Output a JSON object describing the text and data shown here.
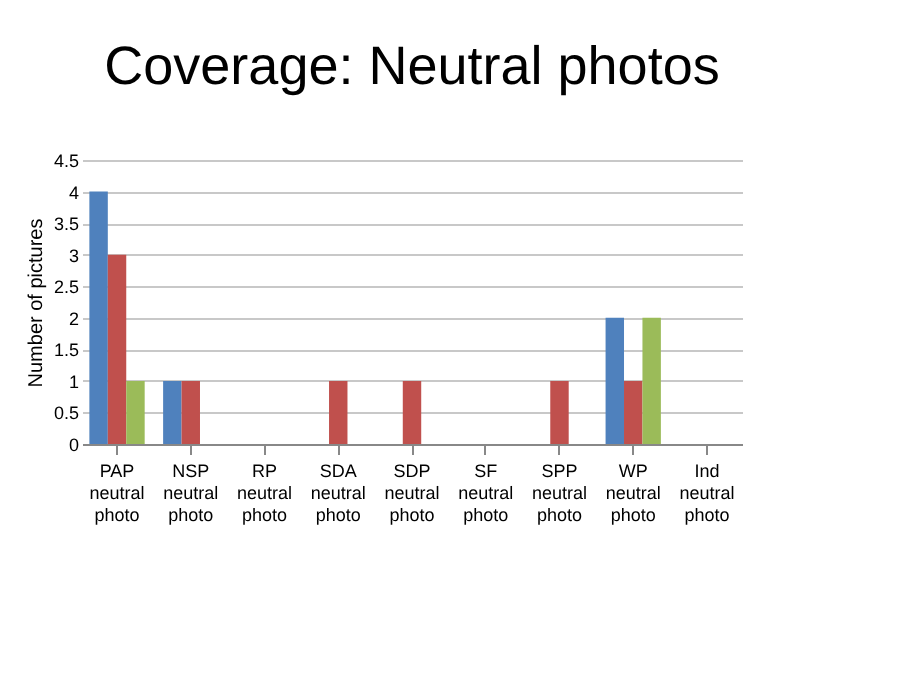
{
  "chart_data": {
    "type": "bar",
    "title": "Coverage: Neutral photos",
    "ylabel": "Number of pictures",
    "categories": [
      "PAP neutral photo",
      "NSP neutral photo",
      "RP neutral photo",
      "SDA neutral photo",
      "SDP neutral photo",
      "SF neutral photo",
      "SPP neutral photo",
      "WP neutral photo",
      "Ind neutral photo"
    ],
    "series": [
      {
        "color": "#4f81bd",
        "values": [
          4,
          1,
          0,
          0,
          0,
          0,
          0,
          2,
          0
        ]
      },
      {
        "color": "#c0504d",
        "values": [
          3,
          1,
          0,
          1,
          1,
          0,
          1,
          1,
          0
        ]
      },
      {
        "color": "#9bbb59",
        "values": [
          1,
          0,
          0,
          0,
          0,
          0,
          0,
          2,
          0
        ]
      }
    ],
    "ylim": [
      0,
      4.5
    ],
    "yticks": [
      0,
      0.5,
      1,
      1.5,
      2,
      2.5,
      3,
      3.5,
      4,
      4.5
    ],
    "grid": "y"
  }
}
